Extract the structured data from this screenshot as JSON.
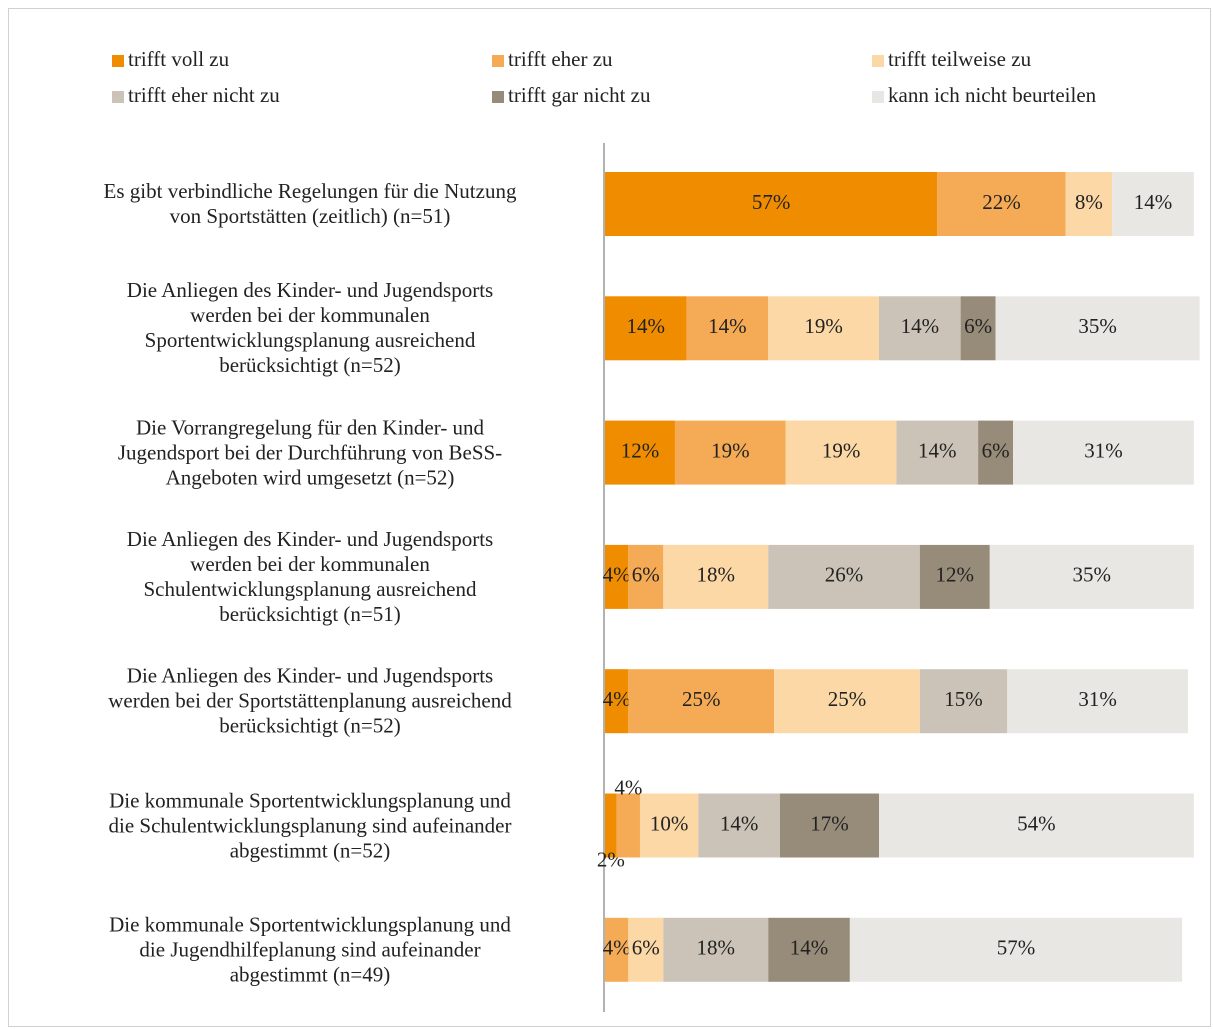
{
  "chart_data": {
    "type": "stacked_bar_horizontal",
    "categories": [
      "Es gibt verbindliche Regelungen für die Nutzung\nvon Sportstätten (zeitlich) (n=51)",
      "Die Anliegen des Kinder- und Jugendsports\nwerden bei der kommunalen\nSportentwicklungsplanung ausreichend\nberücksichtigt (n=52)",
      "Die Vorrangregelung für den Kinder- und\nJugendsport bei der Durchführung von BeSS-\nAngeboten wird umgesetzt (n=52)",
      "Die Anliegen des Kinder- und Jugendsports\nwerden bei der kommunalen\nSchulentwicklungsplanung ausreichend\nberücksichtigt (n=51)",
      "Die Anliegen des Kinder- und Jugendsports\nwerden bei der Sportstättenplanung ausreichend\nberücksichtigt (n=52)",
      "Die kommunale Sportentwicklungsplanung und\ndie Schulentwicklungsplanung sind aufeinander\nabgestimmt (n=52)",
      "Die kommunale Sportentwicklungsplanung und\ndie Jugendhilfeplanung sind aufeinander\nabgestimmt (n=49)"
    ],
    "series": [
      {
        "name": "trifft voll zu",
        "color": "#f08c00",
        "values": [
          57,
          14,
          12,
          4,
          4,
          2,
          0
        ],
        "value_labels": [
          "57%",
          "14%",
          "12%",
          "4%",
          "4%",
          "2%",
          null
        ]
      },
      {
        "name": "trifft eher zu",
        "color": "#f5ab55",
        "values": [
          22,
          14,
          19,
          6,
          25,
          4,
          4
        ],
        "value_labels": [
          "22%",
          "14%",
          "19%",
          "6%",
          "25%",
          "4%",
          "4%"
        ]
      },
      {
        "name": "trifft teilweise zu",
        "color": "#fbd8a6",
        "values": [
          8,
          19,
          19,
          18,
          25,
          10,
          6
        ],
        "value_labels": [
          "8%",
          "19%",
          "19%",
          "18%",
          "25%",
          "10%",
          "6%"
        ]
      },
      {
        "name": "trifft eher nicht zu",
        "color": "#cbc3b7",
        "values": [
          0,
          14,
          14,
          26,
          15,
          14,
          18
        ],
        "value_labels": [
          null,
          "14%",
          "14%",
          "26%",
          "15%",
          "14%",
          "18%"
        ]
      },
      {
        "name": "trifft gar nicht zu",
        "color": "#978b79",
        "values": [
          0,
          6,
          6,
          12,
          0,
          17,
          14
        ],
        "value_labels": [
          null,
          "6%",
          "6%",
          "12%",
          null,
          "17%",
          "14%"
        ]
      },
      {
        "name": "kann ich nicht beurteilen",
        "color": "#e9e7e3",
        "values": [
          14,
          35,
          31,
          35,
          31,
          54,
          57
        ],
        "value_labels": [
          "14%",
          "35%",
          "31%",
          "35%",
          "31%",
          "54%",
          "57%"
        ]
      }
    ]
  }
}
